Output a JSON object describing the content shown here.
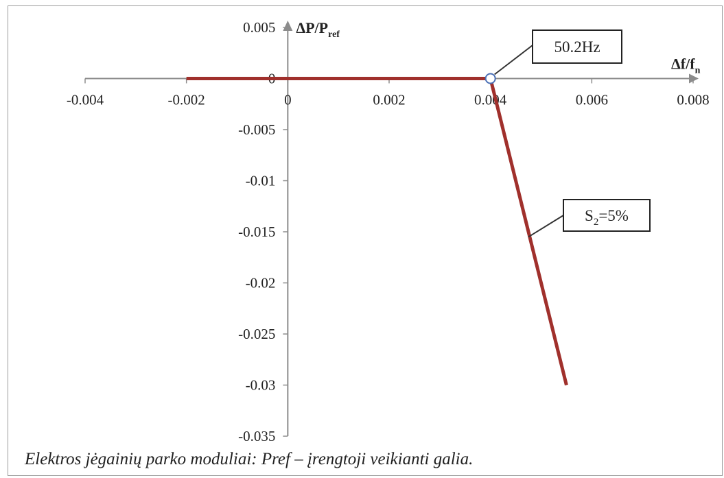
{
  "chart_data": {
    "type": "line",
    "ylabel": "ΔP/P",
    "ylabel_sub": "ref",
    "xlabel": "Δf/f",
    "xlabel_sub": "n",
    "xlim": [
      -0.004,
      0.008
    ],
    "ylim": [
      -0.035,
      0.005
    ],
    "x_ticks": [
      -0.004,
      -0.002,
      0,
      0.002,
      0.004,
      0.006,
      0.008
    ],
    "x_tick_labels": [
      "-0.004",
      "-0.002",
      "0",
      "0.002",
      "0.004",
      "0.006",
      "0.008"
    ],
    "y_ticks": [
      0.005,
      0,
      -0.005,
      -0.01,
      -0.015,
      -0.02,
      -0.025,
      -0.03,
      -0.035
    ],
    "y_tick_labels": [
      "0.005",
      "0",
      "-0.005",
      "-0.01",
      "-0.015",
      "-0.02",
      "-0.025",
      "-0.03",
      "-0.035"
    ],
    "grid": false,
    "series": [
      {
        "color": "#a0302c",
        "x": [
          -0.002,
          0.004,
          0.0055
        ],
        "y": [
          0,
          0,
          -0.03
        ]
      }
    ],
    "marker": {
      "x": 0.004,
      "y": 0
    },
    "annotations": [
      {
        "text": "50.2Hz",
        "target_x": 0.004,
        "target_y": 0
      },
      {
        "text": "S",
        "sub": "2",
        "suffix": "=5%",
        "target_x": 0.00475,
        "target_y": -0.0155
      }
    ]
  },
  "caption": "Elektros jėgainių parko moduliai: Pref – įrengtoji veikianti galia."
}
